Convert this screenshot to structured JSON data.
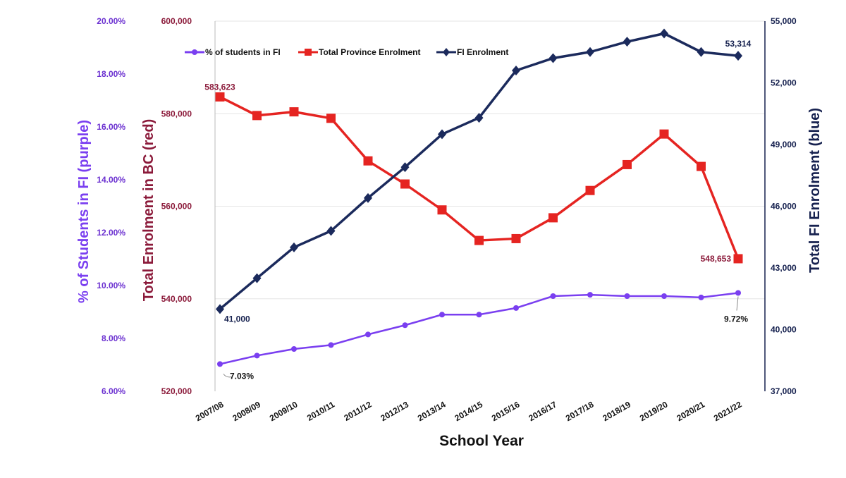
{
  "chart_data": {
    "type": "line",
    "xlabel": "School Year",
    "categories": [
      "2007/08",
      "2008/09",
      "2009/10",
      "2010/11",
      "2011/12",
      "2012/13",
      "2013/14",
      "2014/15",
      "2015/16",
      "2016/17",
      "2017/18",
      "2018/19",
      "2019/20",
      "2020/21",
      "2021/22"
    ],
    "axes": {
      "left_outer": {
        "label": "% of Students in FI (purple)",
        "range": [
          6,
          20
        ],
        "ticks": [
          "6.00%",
          "8.00%",
          "10.00%",
          "12.00%",
          "14.00%",
          "16.00%",
          "18.00%",
          "20.00%"
        ],
        "color": "#7a3ff0"
      },
      "left_inner": {
        "label": "Total Enrolment in BC (red)",
        "range": [
          520000,
          600000
        ],
        "ticks": [
          "520,000",
          "540,000",
          "560,000",
          "580,000",
          "600,000"
        ],
        "color": "#8b1a3a"
      },
      "right": {
        "label": "Total FI Enrolment (blue)",
        "range": [
          37000,
          55000
        ],
        "ticks": [
          "37,000",
          "40,000",
          "43,000",
          "46,000",
          "49,000",
          "52,000",
          "55,000"
        ],
        "color": "#16214f"
      }
    },
    "series": [
      {
        "name": "% of students in FI",
        "axis": "left_outer",
        "color": "#7a3ff0",
        "marker": "circle",
        "values": [
          7.03,
          7.35,
          7.6,
          7.75,
          8.15,
          8.5,
          8.9,
          8.9,
          9.15,
          9.6,
          9.65,
          9.6,
          9.6,
          9.55,
          9.72
        ]
      },
      {
        "name": "Total Province Enrolment",
        "axis": "left_inner",
        "color": "#e52421",
        "marker": "square",
        "values": [
          583623,
          579600,
          580400,
          579000,
          569800,
          564800,
          559200,
          552600,
          553000,
          557500,
          563400,
          569000,
          575600,
          568600,
          548653
        ]
      },
      {
        "name": "FI Enrolment",
        "axis": "right",
        "color": "#1b2a5c",
        "marker": "diamond",
        "values": [
          41000,
          42500,
          44000,
          44800,
          46400,
          47900,
          49500,
          50300,
          52600,
          53200,
          53500,
          54000,
          54400,
          53500,
          53314
        ]
      }
    ],
    "annotations": [
      {
        "text": "583,623",
        "series": 1,
        "index": 0,
        "color": "#8b1a3a"
      },
      {
        "text": "548,653",
        "series": 1,
        "index": 14,
        "color": "#8b1a3a"
      },
      {
        "text": "41,000",
        "series": 2,
        "index": 0,
        "color": "#16214f"
      },
      {
        "text": "53,314",
        "series": 2,
        "index": 14,
        "color": "#16214f"
      },
      {
        "text": "7.03%",
        "series": 0,
        "index": 0,
        "color": "#111111"
      },
      {
        "text": "9.72%",
        "series": 0,
        "index": 14,
        "color": "#111111"
      }
    ],
    "legend": {
      "placement": "top",
      "entries": [
        "% of students in FI",
        "Total Province Enrolment",
        "FI Enrolment"
      ]
    },
    "grid": true
  }
}
